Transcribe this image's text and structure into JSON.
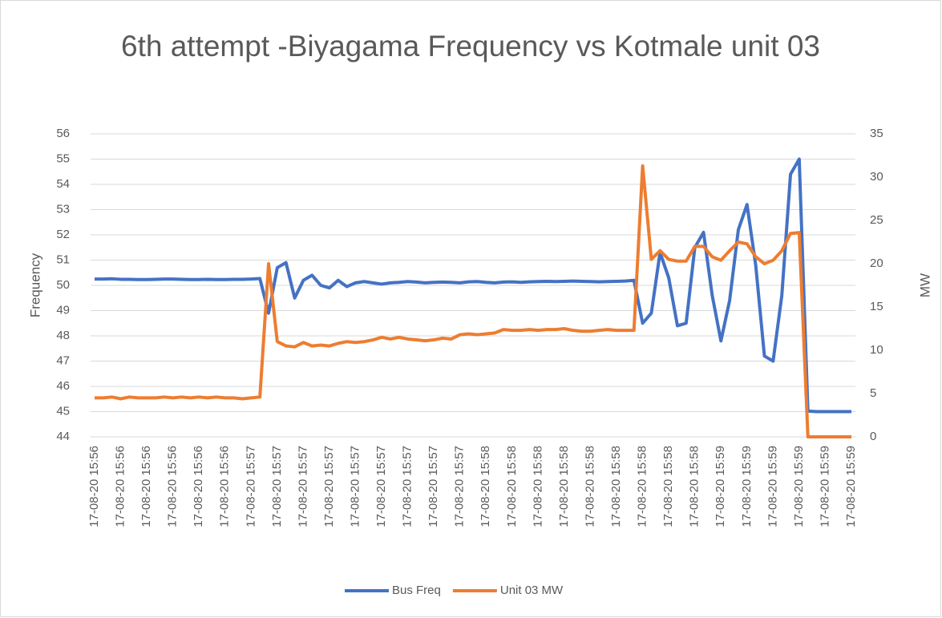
{
  "chart_data": {
    "type": "line",
    "title": "6th attempt -Biyagama Frequency vs Kotmale unit 03",
    "y_label": "Frequency",
    "y2_label": "MW",
    "categories": [
      "17-08-20 15:56",
      null,
      null,
      "17-08-20 15:56",
      null,
      null,
      "17-08-20 15:56",
      null,
      null,
      "17-08-20 15:56",
      null,
      null,
      "17-08-20 15:56",
      null,
      null,
      "17-08-20 15:56",
      null,
      null,
      "17-08-20 15:57",
      null,
      null,
      "17-08-20 15:57",
      null,
      null,
      "17-08-20 15:57",
      null,
      null,
      "17-08-20 15:57",
      null,
      null,
      "17-08-20 15:57",
      null,
      null,
      "17-08-20 15:57",
      null,
      null,
      "17-08-20 15:57",
      null,
      null,
      "17-08-20 15:57",
      null,
      null,
      "17-08-20 15:57",
      null,
      null,
      "17-08-20 15:58",
      null,
      null,
      "17-08-20 15:58",
      null,
      null,
      "17-08-20 15:58",
      null,
      null,
      "17-08-20 15:58",
      null,
      null,
      "17-08-20 15:58",
      null,
      null,
      "17-08-20 15:58",
      null,
      null,
      "17-08-20 15:58",
      null,
      null,
      "17-08-20 15:58",
      null,
      null,
      "17-08-20 15:58",
      null,
      null,
      "17-08-20 15:59",
      null,
      null,
      "17-08-20 15:59",
      null,
      null,
      "17-08-20 15:59",
      null,
      null,
      "17-08-20 15:59",
      null,
      null,
      "17-08-20 15:59",
      null,
      null,
      "17-08-20 15:59"
    ],
    "series": [
      {
        "name": "Bus Freq",
        "color": "#4472c4",
        "axis": "y",
        "values": [
          50.25,
          50.25,
          50.26,
          50.24,
          50.24,
          50.23,
          50.23,
          50.24,
          50.25,
          50.25,
          50.24,
          50.23,
          50.23,
          50.24,
          50.23,
          50.23,
          50.24,
          50.24,
          50.25,
          50.27,
          48.9,
          50.7,
          50.9,
          49.5,
          50.2,
          50.4,
          50.0,
          49.9,
          50.2,
          49.95,
          50.1,
          50.15,
          50.1,
          50.05,
          50.1,
          50.12,
          50.15,
          50.13,
          50.1,
          50.12,
          50.13,
          50.12,
          50.1,
          50.14,
          50.15,
          50.12,
          50.1,
          50.13,
          50.14,
          50.12,
          50.14,
          50.15,
          50.16,
          50.15,
          50.16,
          50.17,
          50.16,
          50.15,
          50.14,
          50.15,
          50.16,
          50.17,
          50.2,
          48.5,
          48.9,
          51.3,
          50.3,
          48.4,
          48.5,
          51.5,
          52.1,
          49.6,
          47.8,
          49.4,
          52.2,
          53.2,
          50.8,
          47.2,
          47,
          49.6,
          54.4,
          55,
          45.02,
          45,
          45,
          45,
          45,
          45
        ]
      },
      {
        "name": "Unit 03 MW",
        "color": "#ed7d31",
        "axis": "y2",
        "values": [
          4.5,
          4.5,
          4.6,
          4.4,
          4.6,
          4.5,
          4.5,
          4.5,
          4.6,
          4.5,
          4.6,
          4.5,
          4.6,
          4.5,
          4.6,
          4.5,
          4.5,
          4.4,
          4.5,
          4.6,
          20,
          11,
          10.5,
          10.4,
          10.9,
          10.5,
          10.6,
          10.5,
          10.8,
          11,
          10.9,
          11,
          11.2,
          11.5,
          11.3,
          11.5,
          11.3,
          11.2,
          11.1,
          11.2,
          11.4,
          11.3,
          11.8,
          11.9,
          11.8,
          11.9,
          12,
          12.4,
          12.3,
          12.3,
          12.4,
          12.3,
          12.4,
          12.4,
          12.5,
          12.3,
          12.2,
          12.2,
          12.3,
          12.4,
          12.3,
          12.3,
          12.3,
          31.3,
          20.5,
          21.5,
          20.5,
          20.3,
          20.3,
          22,
          22,
          20.8,
          20.4,
          21.5,
          22.5,
          22.3,
          20.8,
          20,
          20.4,
          21.5,
          23.5,
          23.6,
          0,
          0,
          0,
          0,
          0,
          0
        ]
      }
    ],
    "ylim": [
      44,
      56
    ],
    "yticks": [
      44,
      45,
      46,
      47,
      48,
      49,
      50,
      51,
      52,
      53,
      54,
      55,
      56
    ],
    "y2lim": [
      0,
      35
    ],
    "y2ticks": [
      0,
      5,
      10,
      15,
      20,
      25,
      30,
      35
    ],
    "grid": true,
    "legend": "bottom"
  }
}
